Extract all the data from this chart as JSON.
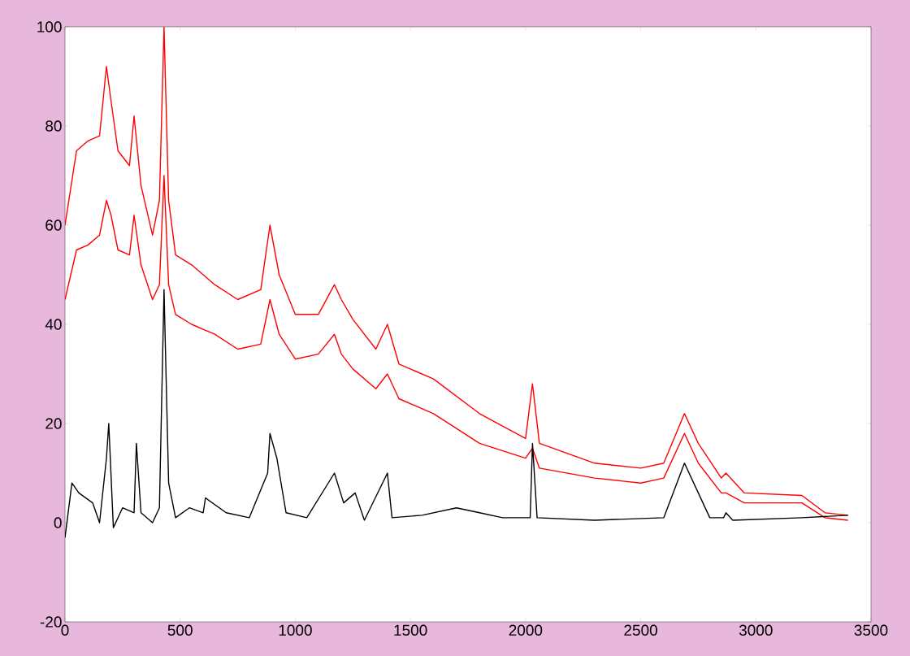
{
  "chart_data": {
    "type": "line",
    "xlim": [
      0,
      3500
    ],
    "ylim": [
      -20,
      100
    ],
    "xticks": [
      0,
      500,
      1000,
      1500,
      2000,
      2500,
      3000,
      3500
    ],
    "yticks": [
      -20,
      0,
      20,
      40,
      60,
      80,
      100
    ],
    "grid": false,
    "line_style": "solid",
    "marker": "none",
    "series": [
      {
        "color": "#ff0000",
        "x": [
          0,
          50,
          100,
          150,
          180,
          200,
          230,
          280,
          300,
          330,
          380,
          410,
          430,
          450,
          480,
          550,
          650,
          750,
          850,
          890,
          930,
          1000,
          1100,
          1170,
          1200,
          1250,
          1350,
          1400,
          1450,
          1600,
          1800,
          2000,
          2030,
          2060,
          2300,
          2500,
          2600,
          2690,
          2750,
          2850,
          2870,
          2950,
          3200,
          3300,
          3400
        ],
        "values": [
          60,
          75,
          77,
          78,
          92,
          85,
          75,
          72,
          82,
          68,
          58,
          65,
          100,
          65,
          54,
          52,
          48,
          45,
          47,
          60,
          50,
          42,
          42,
          48,
          45,
          41,
          35,
          40,
          32,
          29,
          22,
          17,
          28,
          16,
          12,
          11,
          12,
          22,
          16,
          9,
          10,
          6,
          5.5,
          2,
          1.5
        ]
      },
      {
        "color": "#ff0000",
        "x": [
          0,
          50,
          100,
          150,
          180,
          200,
          230,
          280,
          300,
          330,
          380,
          410,
          430,
          450,
          480,
          550,
          650,
          750,
          850,
          890,
          930,
          1000,
          1100,
          1170,
          1200,
          1250,
          1350,
          1400,
          1450,
          1600,
          1800,
          2000,
          2030,
          2060,
          2300,
          2500,
          2600,
          2690,
          2750,
          2850,
          2870,
          2950,
          3200,
          3300,
          3400
        ],
        "values": [
          45,
          55,
          56,
          58,
          65,
          62,
          55,
          54,
          62,
          52,
          45,
          48,
          70,
          48,
          42,
          40,
          38,
          35,
          36,
          45,
          38,
          33,
          34,
          38,
          34,
          31,
          27,
          30,
          25,
          22,
          16,
          13,
          15,
          11,
          9,
          8,
          9,
          18,
          12,
          6,
          6,
          4,
          4,
          1,
          0.5
        ]
      },
      {
        "color": "#000000",
        "x": [
          0,
          30,
          60,
          120,
          150,
          180,
          190,
          210,
          250,
          300,
          310,
          330,
          380,
          410,
          430,
          450,
          480,
          540,
          600,
          610,
          700,
          800,
          880,
          890,
          920,
          960,
          1050,
          1170,
          1210,
          1260,
          1300,
          1400,
          1420,
          1550,
          1700,
          1800,
          1900,
          2020,
          2030,
          2050,
          2300,
          2600,
          2690,
          2750,
          2800,
          2860,
          2870,
          2900,
          3200,
          3400
        ],
        "values": [
          -3,
          8,
          6,
          4,
          0,
          13,
          20,
          -1,
          3,
          2,
          16,
          2,
          0,
          3,
          47,
          8,
          1,
          3,
          2,
          5,
          2,
          1,
          10,
          18,
          13,
          2,
          1,
          10,
          4,
          6,
          0.5,
          10,
          1,
          1.5,
          3,
          2,
          1,
          1,
          16,
          1,
          0.5,
          1,
          12,
          6,
          1,
          1,
          2,
          0.5,
          1,
          1.5
        ]
      }
    ]
  }
}
